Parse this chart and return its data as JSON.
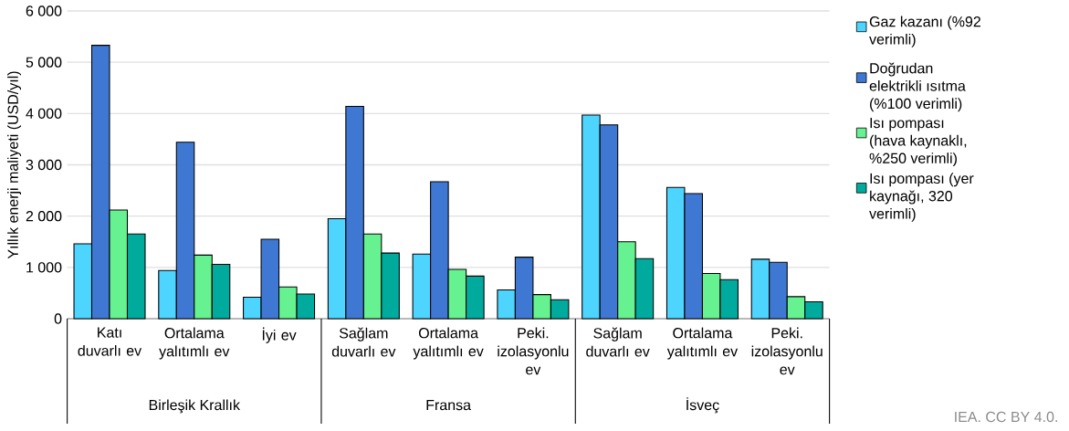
{
  "chart_data": {
    "type": "bar",
    "ylabel": "Yıllık enerji maliyeti (USD/yıl)",
    "categories": [
      "Katı duvarlı ev",
      "Ortalama yalıtımlı ev",
      "İyi ev",
      "Sağlam duvarlı ev",
      "Ortalama yalıtımlı ev",
      "Peki. izolasyonlu ev",
      "Sağlam duvarlı ev",
      "Ortalama yalıtımlı ev",
      "Peki. izolasyonlu ev"
    ],
    "series": [
      {
        "name": "Gaz kazanı (%92 verimli)",
        "color": "#4dd4ff",
        "values": [
          1460,
          940,
          420,
          1950,
          1260,
          560,
          3970,
          2560,
          1160
        ]
      },
      {
        "name": "Doğrudan elektrikli ısıtma (%100 verimli)",
        "color": "#3f78d2",
        "values": [
          5330,
          3440,
          1550,
          4140,
          2670,
          1200,
          3780,
          2440,
          1100
        ]
      },
      {
        "name": "Isı pompası (hava kaynaklı, %250 verimli)",
        "color": "#66f290",
        "values": [
          2120,
          1240,
          620,
          1650,
          960,
          470,
          1500,
          880,
          430
        ]
      },
      {
        "name": "Isı pompası (yer kaynağı, 320 verimli)",
        "color": "#00ab9e",
        "values": [
          1650,
          1060,
          480,
          1280,
          830,
          370,
          1170,
          760,
          330
        ]
      }
    ],
    "ylim": [
      0,
      6000
    ],
    "yticks": [
      0,
      {
        "value": 1000,
        "label": "1 000"
      },
      {
        "value": 2000,
        "label": "2 000"
      },
      {
        "value": 3000,
        "label": "3 000"
      },
      {
        "value": 4000,
        "label": "4 000"
      },
      {
        "value": 5000,
        "label": "5 000"
      },
      {
        "value": 6000,
        "label": "6 000"
      }
    ],
    "grid": "y",
    "legend": "top right",
    "annotations": [
      "Birleşik Krallık",
      "Fransa",
      "İsveç",
      "IEA. CC BY 4.0."
    ]
  }
}
